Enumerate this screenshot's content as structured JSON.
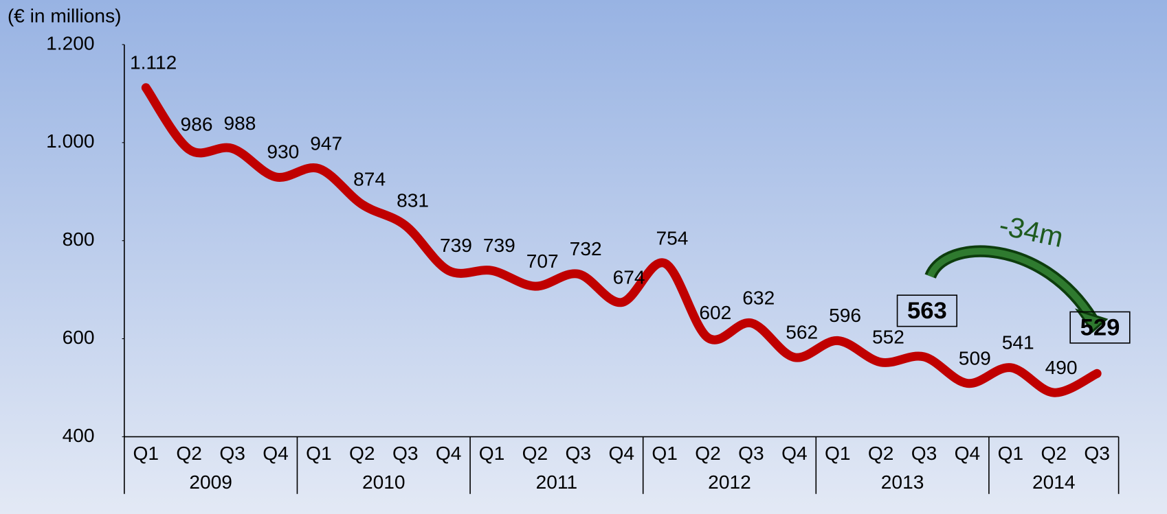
{
  "chart_data": {
    "type": "line",
    "y_axis_label": "(€ in millions)",
    "annotation": "-34m",
    "category_groups": [
      {
        "name": "2009",
        "categories": [
          "Q1",
          "Q2",
          "Q3",
          "Q4"
        ]
      },
      {
        "name": "2010",
        "categories": [
          "Q1",
          "Q2",
          "Q3",
          "Q4"
        ]
      },
      {
        "name": "2011",
        "categories": [
          "Q1",
          "Q2",
          "Q3",
          "Q4"
        ]
      },
      {
        "name": "2012",
        "categories": [
          "Q1",
          "Q2",
          "Q3",
          "Q4"
        ]
      },
      {
        "name": "2013",
        "categories": [
          "Q1",
          "Q2",
          "Q3",
          "Q4"
        ]
      },
      {
        "name": "2014",
        "categories": [
          "Q1",
          "Q2",
          "Q3"
        ]
      }
    ],
    "values": [
      1112,
      986,
      988,
      930,
      947,
      874,
      831,
      739,
      739,
      707,
      732,
      674,
      754,
      602,
      632,
      562,
      596,
      552,
      563,
      509,
      541,
      490,
      529
    ],
    "value_labels": [
      "1.112",
      "986",
      "988",
      "930",
      "947",
      "874",
      "831",
      "739",
      "739",
      "707",
      "732",
      "674",
      "754",
      "602",
      "632",
      "562",
      "596",
      "552",
      "563",
      "509",
      "541",
      "490",
      "529"
    ],
    "highlighted": [
      18,
      22
    ],
    "color": "#c00000",
    "ylim": [
      400,
      1200
    ],
    "yticks": [
      400,
      600,
      800,
      {
        "value": 1000,
        "label": "1.000"
      },
      {
        "value": 1200,
        "label": "1.200"
      }
    ]
  }
}
